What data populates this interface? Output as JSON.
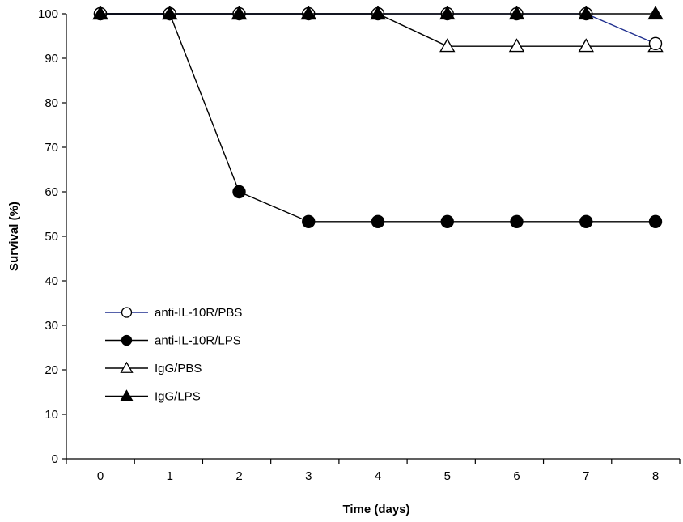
{
  "chart_data": {
    "type": "line",
    "title": "",
    "xlabel": "Time (days)",
    "ylabel": "Survival (%)",
    "x": [
      0,
      1,
      2,
      3,
      4,
      5,
      6,
      7,
      8
    ],
    "xlim": [
      0,
      8
    ],
    "ylim": [
      0,
      100
    ],
    "yticks": [
      0,
      10,
      20,
      30,
      40,
      50,
      60,
      70,
      80,
      90,
      100
    ],
    "grid": false,
    "legend": "left",
    "series": [
      {
        "name": "anti-IL-10R/PBS",
        "values": [
          100,
          100,
          100,
          100,
          100,
          100,
          100,
          100,
          93.3
        ],
        "marker": "circle-open",
        "line_color": "#1f2f8f",
        "marker_color": "#000000"
      },
      {
        "name": "anti-IL-10R/LPS",
        "values": [
          100,
          100,
          60,
          53.3,
          53.3,
          53.3,
          53.3,
          53.3,
          53.3
        ],
        "marker": "circle-filled",
        "line_color": "#000000",
        "marker_color": "#000000"
      },
      {
        "name": "IgG/PBS",
        "values": [
          100,
          100,
          100,
          100,
          100,
          92.7,
          92.7,
          92.7,
          92.7
        ],
        "marker": "triangle-open",
        "line_color": "#000000",
        "marker_color": "#000000"
      },
      {
        "name": "IgG/LPS",
        "values": [
          100,
          100,
          100,
          100,
          100,
          100,
          100,
          100,
          100
        ],
        "marker": "triangle-filled",
        "line_color": "#000000",
        "marker_color": "#000000"
      }
    ]
  }
}
